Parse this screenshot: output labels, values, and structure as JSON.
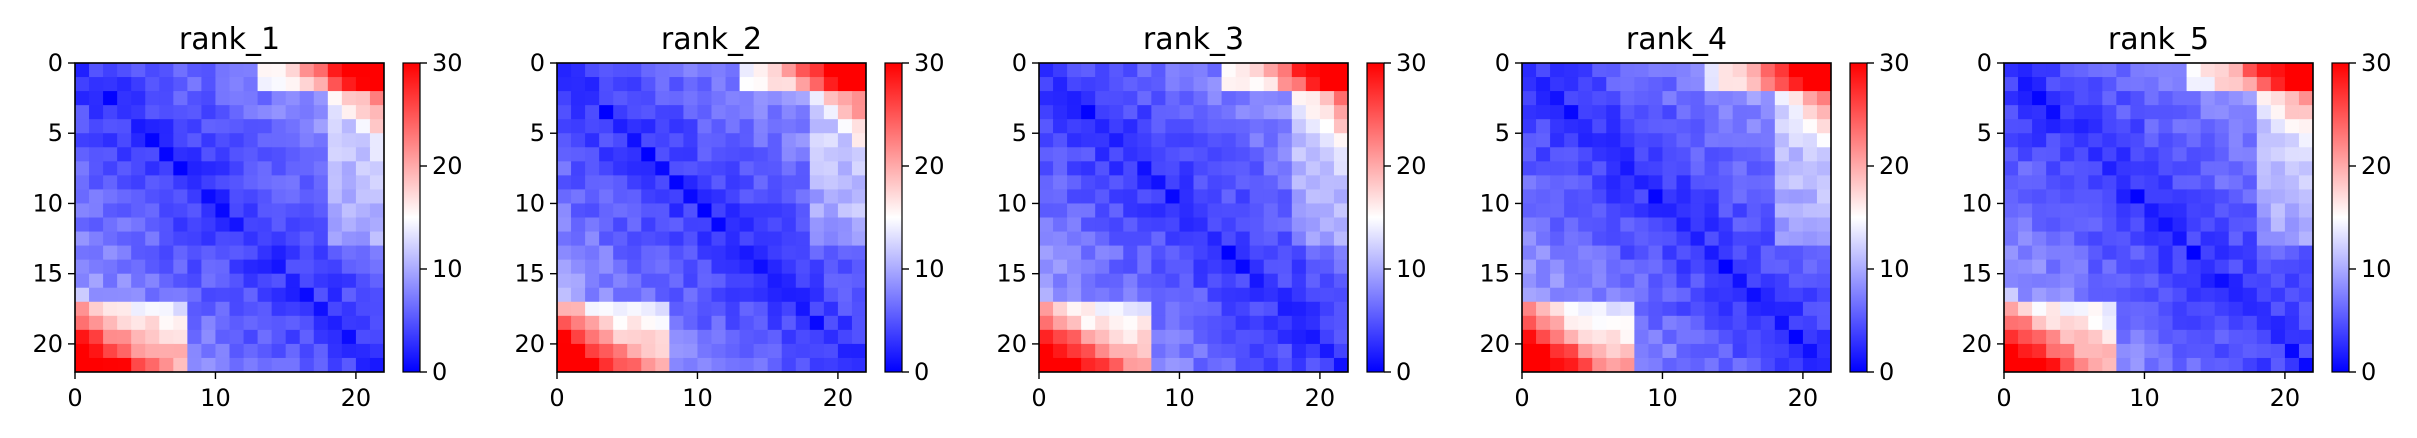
{
  "chart_data": [
    {
      "type": "heatmap",
      "title": "rank_1",
      "size": 22,
      "x_ticks": [
        0,
        10,
        20
      ],
      "y_ticks": [
        0,
        5,
        10,
        15,
        20
      ],
      "colorbar_ticks": [
        0,
        10,
        20,
        30
      ],
      "vmin": 0,
      "vmax": 30,
      "colormap": "bwr",
      "grid": false
    },
    {
      "type": "heatmap",
      "title": "rank_2",
      "size": 22,
      "x_ticks": [
        0,
        10,
        20
      ],
      "y_ticks": [
        0,
        5,
        10,
        15,
        20
      ],
      "colorbar_ticks": [
        0,
        10,
        20,
        30
      ],
      "vmin": 0,
      "vmax": 30,
      "colormap": "bwr",
      "grid": false
    },
    {
      "type": "heatmap",
      "title": "rank_3",
      "size": 22,
      "x_ticks": [
        0,
        10,
        20
      ],
      "y_ticks": [
        0,
        5,
        10,
        15,
        20
      ],
      "colorbar_ticks": [
        0,
        10,
        20,
        30
      ],
      "vmin": 0,
      "vmax": 30,
      "colormap": "bwr",
      "grid": false
    },
    {
      "type": "heatmap",
      "title": "rank_4",
      "size": 22,
      "x_ticks": [
        0,
        10,
        20
      ],
      "y_ticks": [
        0,
        5,
        10,
        15,
        20
      ],
      "colorbar_ticks": [
        0,
        10,
        20,
        30
      ],
      "vmin": 0,
      "vmax": 30,
      "colormap": "bwr",
      "grid": false
    },
    {
      "type": "heatmap",
      "title": "rank_5",
      "size": 22,
      "x_ticks": [
        0,
        10,
        20
      ],
      "y_ticks": [
        0,
        5,
        10,
        15,
        20
      ],
      "colorbar_ticks": [
        0,
        10,
        20,
        30
      ],
      "vmin": 0,
      "vmax": 30,
      "colormap": "bwr",
      "grid": false
    }
  ]
}
